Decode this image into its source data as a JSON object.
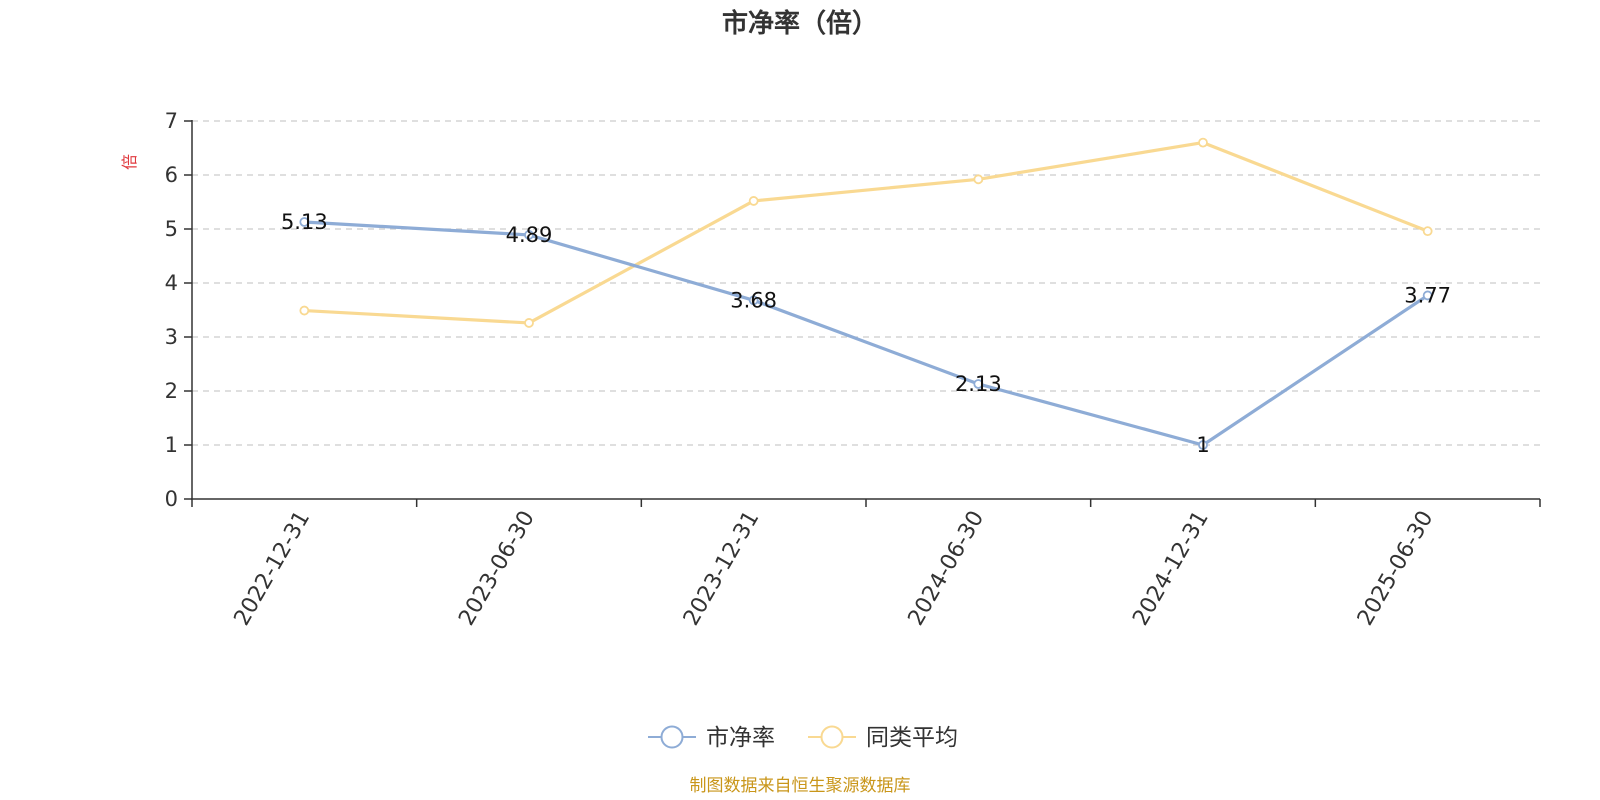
{
  "chart_data": {
    "type": "line",
    "title": "市净率（倍）",
    "ylabel": "倍",
    "xlabel": "",
    "x": [
      "2022-12-31",
      "2023-06-30",
      "2023-12-31",
      "2024-06-30",
      "2024-12-31",
      "2025-06-30"
    ],
    "ylim": [
      0,
      7
    ],
    "yticks": [
      0,
      1,
      2,
      3,
      4,
      5,
      6,
      7
    ],
    "grid": true,
    "legend_position": "bottom-center",
    "series": [
      {
        "name": "市净率",
        "values": [
          5.13,
          4.89,
          3.68,
          2.13,
          1,
          3.77
        ],
        "labels": [
          "5.13",
          "4.89",
          "3.68",
          "2.13",
          "1",
          "3.77"
        ],
        "show_labels": true,
        "color": "#8eacd6"
      },
      {
        "name": "同类平均",
        "values": [
          3.49,
          3.26,
          5.52,
          5.92,
          6.6,
          4.96
        ],
        "show_labels": false,
        "color": "#f9d992"
      }
    ]
  },
  "source_note": "制图数据来自恒生聚源数据库"
}
